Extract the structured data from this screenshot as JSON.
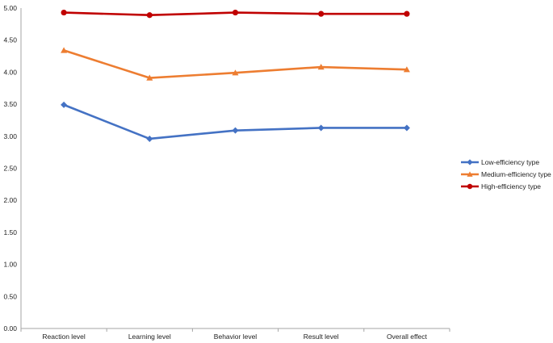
{
  "chart_data": {
    "type": "line",
    "title": "",
    "xlabel": "",
    "ylabel": "",
    "categories": [
      "Reaction level",
      "Learning level",
      "Behavior level",
      "Result level",
      "Overall effect"
    ],
    "ylim": [
      0,
      5
    ],
    "y_ticks": [
      "0.00",
      "0.50",
      "1.00",
      "1.50",
      "2.00",
      "2.50",
      "3.00",
      "3.50",
      "4.00",
      "4.50",
      "5.00"
    ],
    "grid": false,
    "legend_position": "right",
    "series": [
      {
        "name": "Low-efficiency type",
        "values": [
          3.49,
          2.96,
          3.09,
          3.13,
          3.13
        ],
        "color": "#4472C4",
        "marker": "diamond"
      },
      {
        "name": "Medium-efficiency type",
        "values": [
          4.34,
          3.91,
          3.99,
          4.08,
          4.04
        ],
        "color": "#ED7D31",
        "marker": "triangle"
      },
      {
        "name": "High-efficiency type",
        "values": [
          4.93,
          4.89,
          4.93,
          4.91,
          4.91
        ],
        "color": "#C00000",
        "marker": "circle"
      }
    ]
  }
}
